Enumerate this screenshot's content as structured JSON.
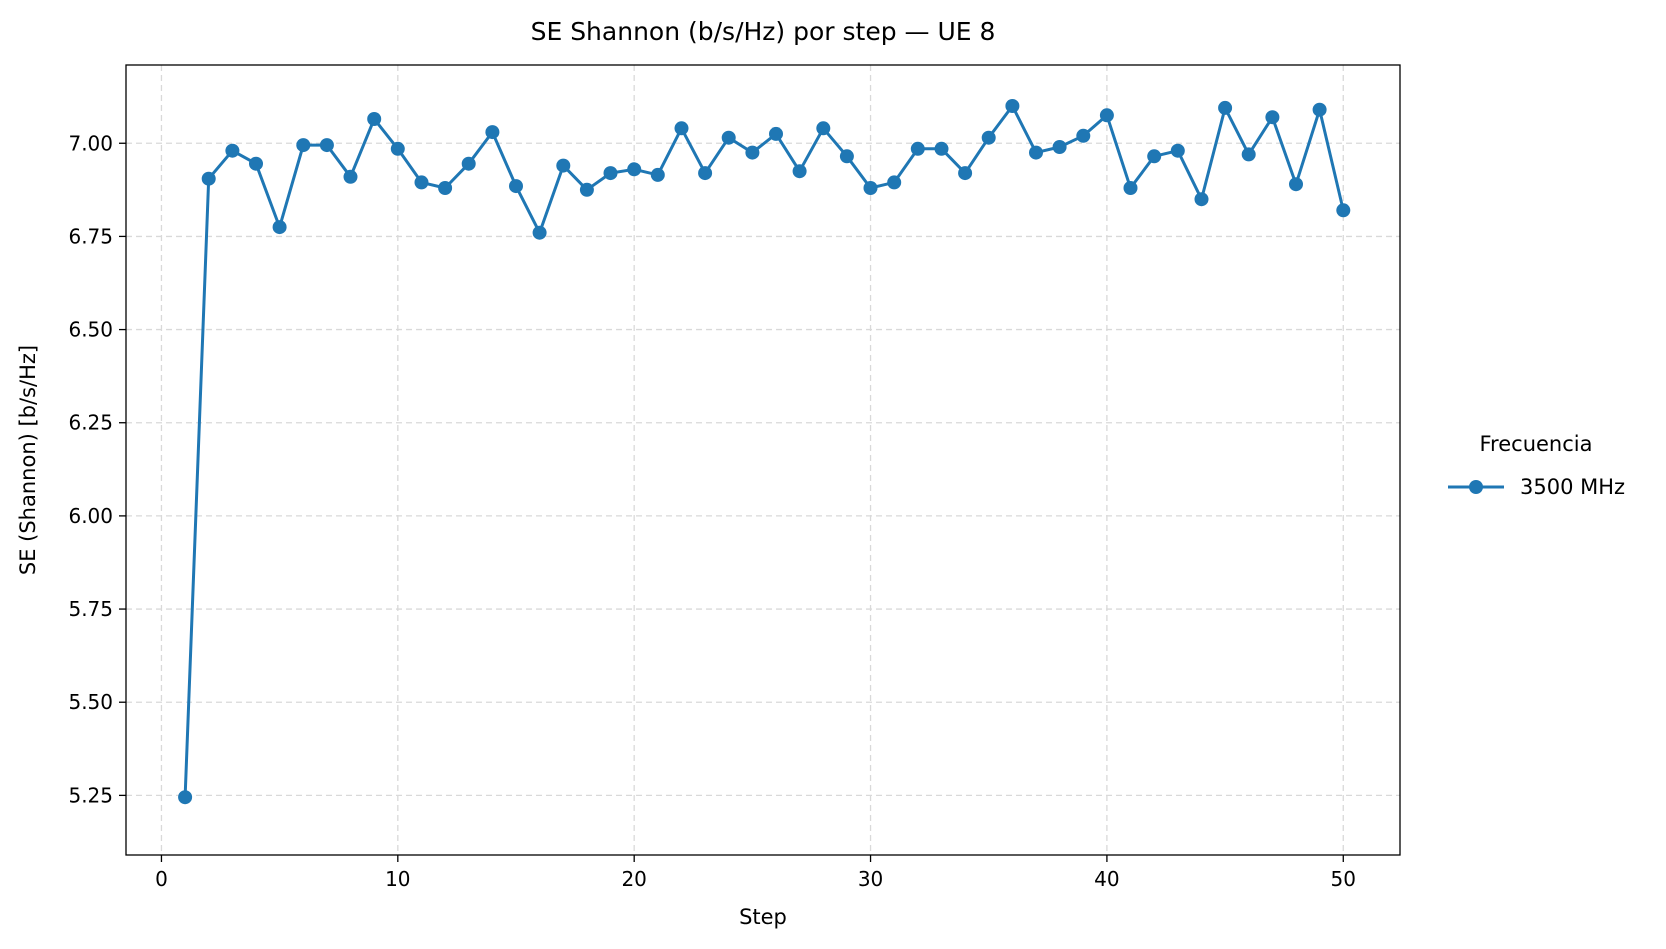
{
  "chart_data": {
    "type": "line",
    "title": "SE Shannon (b/s/Hz) por step — UE 8",
    "xlabel": "Step",
    "ylabel": "SE (Shannon) [b/s/Hz]",
    "xlim": [
      -1.5,
      52.4
    ],
    "ylim": [
      5.09,
      7.21
    ],
    "xticks": [
      0,
      10,
      20,
      30,
      40,
      50
    ],
    "xtick_labels": [
      "0",
      "10",
      "20",
      "30",
      "40",
      "50"
    ],
    "yticks": [
      5.25,
      5.5,
      5.75,
      6.0,
      6.25,
      6.5,
      6.75,
      7.0
    ],
    "ytick_labels": [
      "5.25",
      "5.50",
      "5.75",
      "6.00",
      "6.25",
      "6.50",
      "6.75",
      "7.00"
    ],
    "grid": true,
    "legend": {
      "title": "Frecuencia",
      "placement": "outside-right"
    },
    "x": [
      1,
      2,
      3,
      4,
      5,
      6,
      7,
      8,
      9,
      10,
      11,
      12,
      13,
      14,
      15,
      16,
      17,
      18,
      19,
      20,
      21,
      22,
      23,
      24,
      25,
      26,
      27,
      28,
      29,
      30,
      31,
      32,
      33,
      34,
      35,
      36,
      37,
      38,
      39,
      40,
      41,
      42,
      43,
      44,
      45,
      46,
      47,
      48,
      49,
      50
    ],
    "series": [
      {
        "name": "3500 MHz",
        "color": "#1f77b4",
        "marker": "circle",
        "values": [
          5.245,
          6.905,
          6.98,
          6.945,
          6.775,
          6.995,
          6.995,
          6.91,
          7.065,
          6.985,
          6.895,
          6.88,
          6.945,
          7.03,
          6.885,
          6.76,
          6.94,
          6.875,
          6.92,
          6.93,
          6.915,
          7.04,
          6.92,
          7.015,
          6.975,
          7.025,
          6.925,
          7.04,
          6.965,
          6.88,
          6.895,
          6.985,
          6.985,
          6.92,
          7.015,
          7.1,
          6.975,
          6.99,
          7.02,
          7.075,
          6.88,
          6.965,
          6.98,
          6.85,
          7.095,
          6.97,
          7.07,
          6.89,
          7.09,
          6.82
        ]
      }
    ]
  }
}
